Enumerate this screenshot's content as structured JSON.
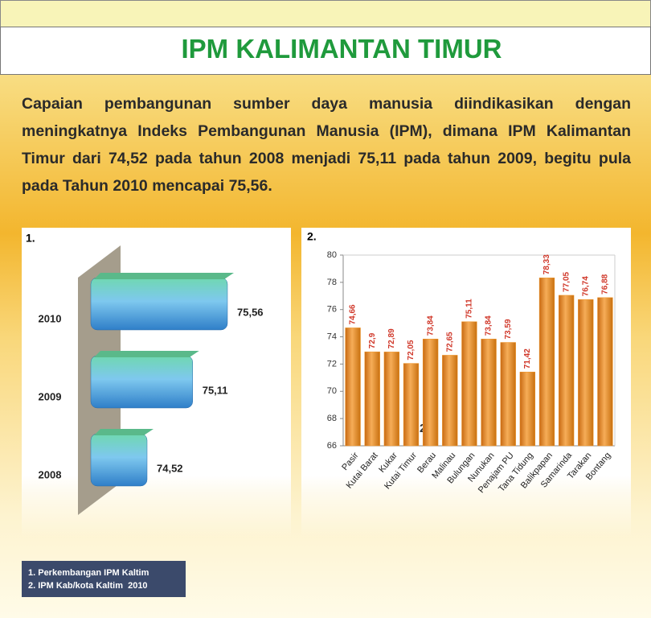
{
  "header": {
    "title": "IPM KALIMANTAN TIMUR"
  },
  "paragraph": "Capaian pembangunan sumber daya manusia diindikasikan dengan meningkatnya Indeks Pembangunan Manusia (IPM), dimana IPM Kalimantan Timur dari 74,52 pada tahun 2008 menjadi 75,11 pada tahun 2009, begitu pula pada Tahun 2010 mencapai 75,56.",
  "chart_data": [
    {
      "type": "hbar",
      "label": "1.",
      "categories": [
        "2010",
        "2009",
        "2008"
      ],
      "values": [
        75.56,
        75.11,
        74.52
      ],
      "value_labels": [
        "75,56",
        "75,11",
        "74,52"
      ],
      "color": "#4aa6dc"
    },
    {
      "type": "bar",
      "label": "2.",
      "annotation": "2.",
      "categories": [
        "Pasir",
        "Kutai Barat",
        "Kukar",
        "Kutai Timur",
        "Berau",
        "Malinau",
        "Bulungan",
        "Nunukan",
        "Penajam PU",
        "Tana Tidung",
        "Balikpapan",
        "Samarinda",
        "Tarakan",
        "Bontang"
      ],
      "values": [
        74.66,
        72.9,
        72.89,
        72.05,
        73.84,
        72.65,
        75.11,
        73.84,
        73.59,
        71.42,
        78.33,
        77.05,
        76.74,
        76.88
      ],
      "value_labels": [
        "74,66",
        "72,9",
        "72,89",
        "72,05",
        "73,84",
        "72,65",
        "75,11",
        "73,84",
        "73,59",
        "71,42",
        "78,33",
        "77,05",
        "76,74",
        "76,88"
      ],
      "ylim": [
        66,
        80
      ],
      "yticks": [
        66,
        68,
        70,
        72,
        74,
        76,
        78,
        80
      ],
      "grid": false,
      "color": "#f0962a",
      "label_color": "#d0382a"
    }
  ],
  "notes": [
    "1. Perkembangan IPM Kaltim",
    "2. IPM Kab/kota Kaltim  2010"
  ]
}
